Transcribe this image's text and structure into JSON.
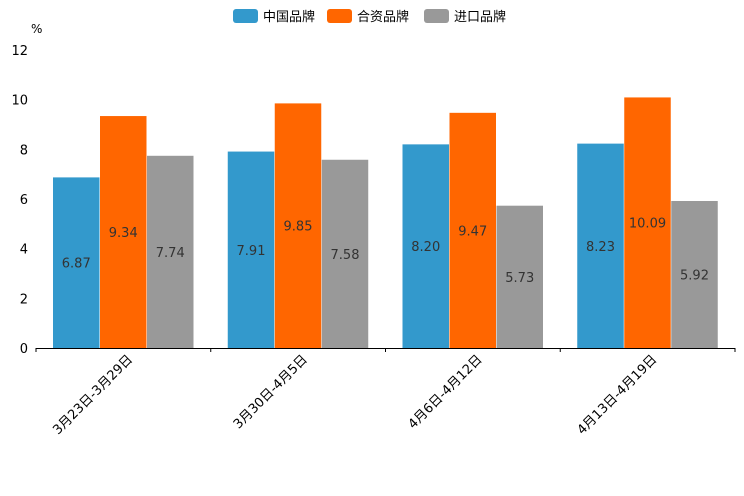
{
  "chart_data": {
    "type": "bar",
    "title": "",
    "xlabel": "",
    "ylabel": "%",
    "ylim": [
      0,
      12
    ],
    "yticks": [
      0,
      2,
      4,
      6,
      8,
      10,
      12
    ],
    "categories": [
      "3月23日-3月29日",
      "3月30日-4月5日",
      "4月6日-4月12日",
      "4月13日-4月19日"
    ],
    "series": [
      {
        "name": "中国品牌",
        "color": "#3399cc",
        "values": [
          6.87,
          7.91,
          8.2,
          8.23
        ],
        "labels": [
          "6.87",
          "7.91",
          "8.20",
          "8.23"
        ]
      },
      {
        "name": "合资品牌",
        "color": "#ff6600",
        "values": [
          9.34,
          9.85,
          9.47,
          10.09
        ],
        "labels": [
          "9.34",
          "9.85",
          "9.47",
          "10.09"
        ]
      },
      {
        "name": "进口品牌",
        "color": "#999999",
        "values": [
          7.74,
          7.58,
          5.73,
          5.92
        ],
        "labels": [
          "7.74",
          "7.58",
          "5.73",
          "5.92"
        ]
      }
    ],
    "legend_position": "top-center",
    "grid": false
  }
}
